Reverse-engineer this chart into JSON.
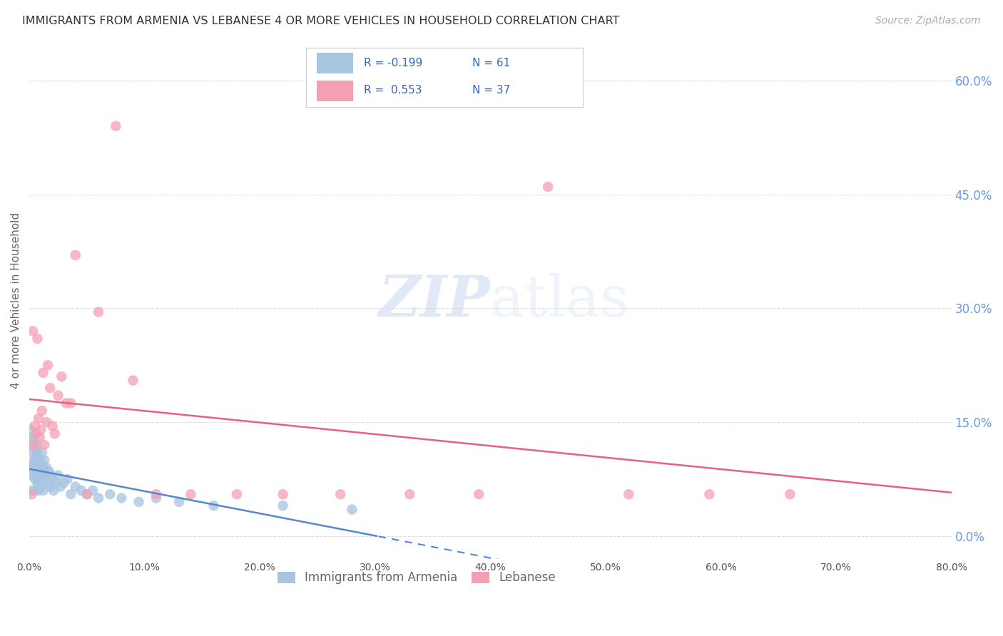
{
  "title": "IMMIGRANTS FROM ARMENIA VS LEBANESE 4 OR MORE VEHICLES IN HOUSEHOLD CORRELATION CHART",
  "source": "Source: ZipAtlas.com",
  "ylabel": "4 or more Vehicles in Household",
  "xlim": [
    0.0,
    0.8
  ],
  "ylim": [
    -0.03,
    0.65
  ],
  "yticks": [
    0.0,
    0.15,
    0.3,
    0.45,
    0.6
  ],
  "xticks": [
    0.0,
    0.1,
    0.2,
    0.3,
    0.4,
    0.5,
    0.6,
    0.7,
    0.8
  ],
  "xtick_labels": [
    "0.0%",
    "10.0%",
    "20.0%",
    "30.0%",
    "40.0%",
    "50.0%",
    "60.0%",
    "70.0%",
    "80.0%"
  ],
  "ytick_labels": [
    "0.0%",
    "15.0%",
    "30.0%",
    "45.0%",
    "60.0%"
  ],
  "armenia_R": -0.199,
  "armenia_N": 61,
  "lebanese_R": 0.553,
  "lebanese_N": 37,
  "armenia_color": "#a8c4e0",
  "lebanese_color": "#f4a0b4",
  "armenia_line_color": "#5588cc",
  "lebanese_line_color": "#e8607a",
  "watermark_zip": "ZIP",
  "watermark_atlas": "atlas",
  "armenia_x": [
    0.001,
    0.001,
    0.002,
    0.002,
    0.002,
    0.003,
    0.003,
    0.003,
    0.004,
    0.004,
    0.004,
    0.005,
    0.005,
    0.005,
    0.005,
    0.006,
    0.006,
    0.006,
    0.007,
    0.007,
    0.007,
    0.008,
    0.008,
    0.008,
    0.009,
    0.009,
    0.01,
    0.01,
    0.011,
    0.011,
    0.012,
    0.012,
    0.013,
    0.013,
    0.014,
    0.015,
    0.016,
    0.017,
    0.018,
    0.019,
    0.02,
    0.021,
    0.023,
    0.025,
    0.027,
    0.03,
    0.033,
    0.036,
    0.04,
    0.045,
    0.05,
    0.055,
    0.06,
    0.07,
    0.08,
    0.095,
    0.11,
    0.13,
    0.16,
    0.22,
    0.28
  ],
  "armenia_y": [
    0.14,
    0.08,
    0.13,
    0.095,
    0.06,
    0.12,
    0.09,
    0.11,
    0.1,
    0.085,
    0.13,
    0.115,
    0.075,
    0.095,
    0.06,
    0.105,
    0.12,
    0.085,
    0.095,
    0.07,
    0.11,
    0.09,
    0.075,
    0.06,
    0.1,
    0.08,
    0.095,
    0.065,
    0.085,
    0.11,
    0.09,
    0.06,
    0.08,
    0.1,
    0.075,
    0.09,
    0.07,
    0.085,
    0.065,
    0.08,
    0.075,
    0.06,
    0.07,
    0.08,
    0.065,
    0.07,
    0.075,
    0.055,
    0.065,
    0.06,
    0.055,
    0.06,
    0.05,
    0.055,
    0.05,
    0.045,
    0.05,
    0.045,
    0.04,
    0.04,
    0.035
  ],
  "lebanese_x": [
    0.002,
    0.003,
    0.004,
    0.005,
    0.006,
    0.007,
    0.008,
    0.009,
    0.01,
    0.011,
    0.012,
    0.013,
    0.015,
    0.016,
    0.018,
    0.02,
    0.022,
    0.025,
    0.028,
    0.032,
    0.036,
    0.04,
    0.05,
    0.06,
    0.075,
    0.09,
    0.11,
    0.14,
    0.18,
    0.22,
    0.27,
    0.33,
    0.39,
    0.45,
    0.52,
    0.59,
    0.66
  ],
  "lebanese_y": [
    0.055,
    0.27,
    0.12,
    0.145,
    0.135,
    0.26,
    0.155,
    0.13,
    0.14,
    0.165,
    0.215,
    0.12,
    0.15,
    0.225,
    0.195,
    0.145,
    0.135,
    0.185,
    0.21,
    0.175,
    0.175,
    0.37,
    0.055,
    0.295,
    0.54,
    0.205,
    0.055,
    0.055,
    0.055,
    0.055,
    0.055,
    0.055,
    0.055,
    0.46,
    0.055,
    0.055,
    0.055
  ]
}
